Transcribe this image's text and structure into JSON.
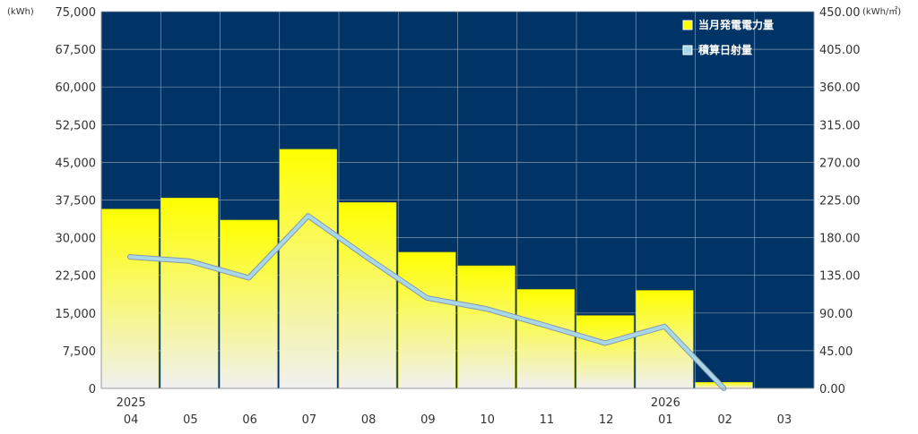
{
  "chart_data": {
    "type": "bar",
    "categories": [
      "04",
      "05",
      "06",
      "07",
      "08",
      "09",
      "10",
      "11",
      "12",
      "01",
      "02",
      "03"
    ],
    "year_labels": [
      {
        "index": 0,
        "text": "2025"
      },
      {
        "index": 9,
        "text": "2026"
      }
    ],
    "series": [
      {
        "name": "当月発電電力量",
        "type": "bar",
        "axis": "left",
        "color": "#ffff00",
        "values": [
          35700,
          37900,
          33500,
          47600,
          37000,
          27100,
          24400,
          19700,
          14500,
          19500,
          1200,
          null
        ]
      },
      {
        "name": "積算日射量",
        "type": "line",
        "axis": "right",
        "color": "#a8d8e8",
        "values": [
          157,
          152,
          132,
          206,
          156,
          108,
          95,
          75,
          54,
          74,
          0,
          null
        ]
      }
    ],
    "y_left": {
      "label": "(kWh)",
      "ylim": [
        0,
        75000
      ],
      "ticks": [
        "0",
        "7,500",
        "15,000",
        "22,500",
        "30,000",
        "37,500",
        "45,000",
        "52,500",
        "60,000",
        "67,500",
        "75,000"
      ]
    },
    "y_right": {
      "label": "(kWh/㎡)",
      "ylim": [
        0,
        450
      ],
      "ticks": [
        "0.00",
        "45.00",
        "90.00",
        "135.00",
        "180.00",
        "225.00",
        "270.00",
        "315.00",
        "360.00",
        "405.00",
        "450.00"
      ]
    },
    "grid": true,
    "legend_position": "top-right",
    "colors": {
      "plot_bg": "#003366",
      "grid": "#8899aa",
      "bar_top": "#ffff00",
      "bar_bottom": "#f0f0f0",
      "line": "#a8d8e8",
      "line_outline": "#8899aa"
    }
  }
}
